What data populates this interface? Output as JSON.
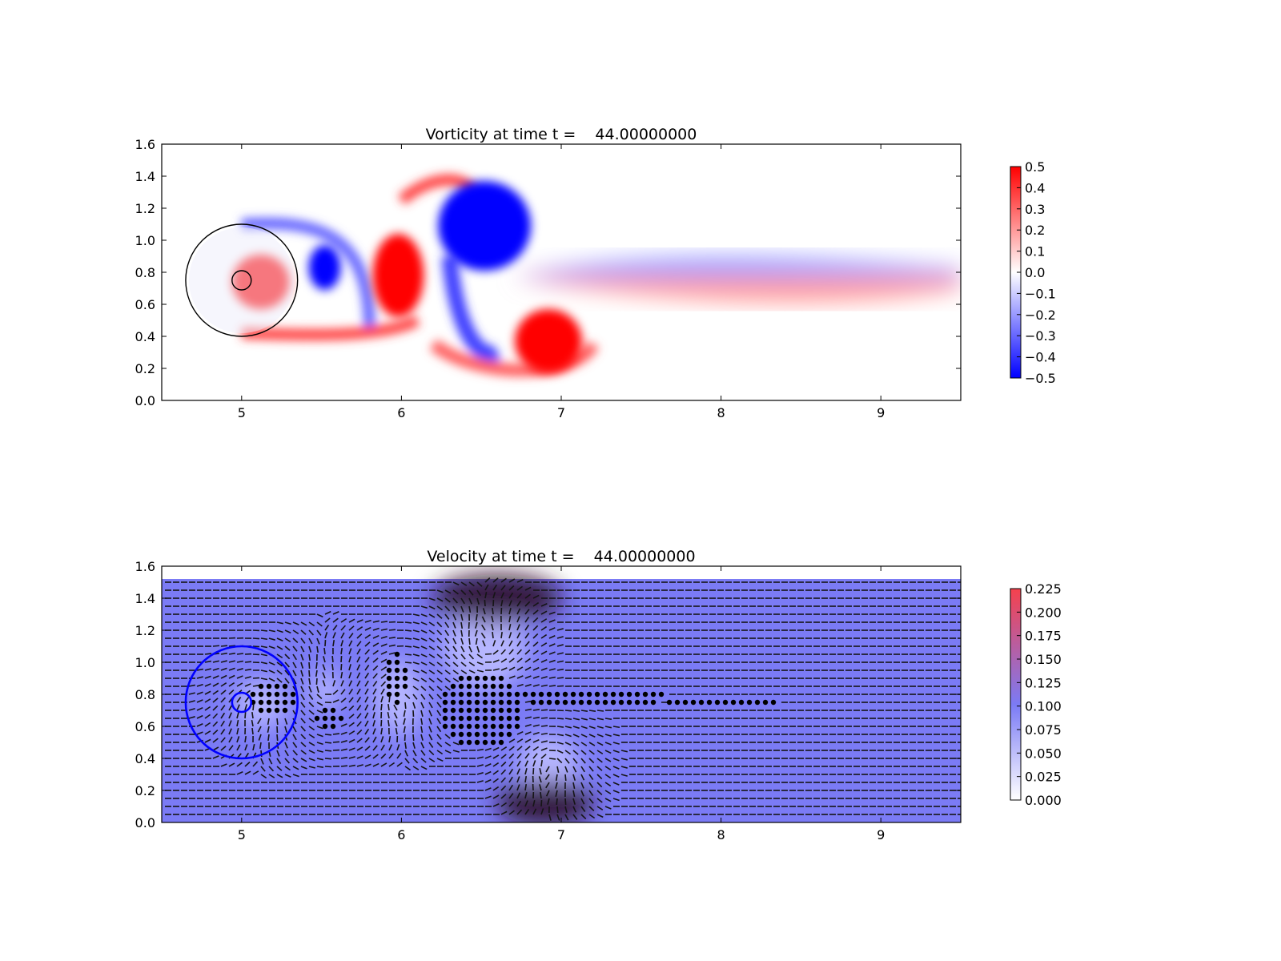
{
  "chart_data": [
    {
      "type": "heatmap",
      "title": "Vorticity at time t =    44.00000000",
      "xlabel": "",
      "ylabel": "",
      "xlim": [
        4.5,
        9.5
      ],
      "ylim": [
        0.0,
        1.6
      ],
      "x_ticks": [
        "5",
        "6",
        "7",
        "8",
        "9"
      ],
      "x_tick_values": [
        5,
        6,
        7,
        8,
        9
      ],
      "y_ticks": [
        "0.0",
        "0.2",
        "0.4",
        "0.6",
        "0.8",
        "1.0",
        "1.2",
        "1.4",
        "1.6"
      ],
      "y_tick_values": [
        0.0,
        0.2,
        0.4,
        0.6,
        0.8,
        1.0,
        1.2,
        1.4,
        1.6
      ],
      "colormap": [
        "#0000ff",
        "#ffffff",
        "#ff0000"
      ],
      "colorbar": {
        "range": [
          -0.5,
          0.5
        ],
        "ticks": [
          "0.5",
          "0.4",
          "0.3",
          "0.2",
          "0.1",
          "0.0",
          "−0.1",
          "−0.2",
          "−0.3",
          "−0.4",
          "−0.5"
        ],
        "tick_values": [
          0.5,
          0.4,
          0.3,
          0.2,
          0.1,
          0.0,
          -0.1,
          -0.2,
          -0.3,
          -0.4,
          -0.5
        ]
      },
      "circles": [
        {
          "cx": 5.0,
          "cy": 0.75,
          "r": 0.35,
          "color": "#000000"
        },
        {
          "cx": 5.0,
          "cy": 0.75,
          "r": 0.06,
          "color": "#000000"
        }
      ],
      "vortices": [
        {
          "x": 5.12,
          "y": 0.74,
          "rx": 0.18,
          "ry": 0.17,
          "value": 0.5
        },
        {
          "x": 5.52,
          "y": 0.83,
          "rx": 0.1,
          "ry": 0.14,
          "value": -0.5
        },
        {
          "x": 5.98,
          "y": 0.78,
          "rx": 0.16,
          "ry": 0.26,
          "value": 0.5
        },
        {
          "x": 6.52,
          "y": 1.09,
          "rx": 0.29,
          "ry": 0.28,
          "value": -0.5
        },
        {
          "x": 6.92,
          "y": 0.37,
          "rx": 0.21,
          "ry": 0.2,
          "value": 0.5
        }
      ],
      "wake": {
        "upper_value": -0.25,
        "lower_value": 0.25,
        "x_start": 6.7,
        "x_end": 9.5,
        "y_center": 0.77
      }
    },
    {
      "type": "heatmap",
      "title": "Velocity at time t =    44.00000000",
      "xlabel": "",
      "ylabel": "",
      "xlim": [
        4.5,
        9.5
      ],
      "ylim": [
        0.0,
        1.6
      ],
      "x_ticks": [
        "5",
        "6",
        "7",
        "8",
        "9"
      ],
      "x_tick_values": [
        5,
        6,
        7,
        8,
        9
      ],
      "y_ticks": [
        "0.0",
        "0.2",
        "0.4",
        "0.6",
        "0.8",
        "1.0",
        "1.2",
        "1.4",
        "1.6"
      ],
      "y_tick_values": [
        0.0,
        0.2,
        0.4,
        0.6,
        0.8,
        1.0,
        1.2,
        1.4,
        1.6
      ],
      "field_top": 1.52,
      "colormap": [
        "#ffffff",
        "#7b7bf5",
        "#f5414d"
      ],
      "colorbar": {
        "range": [
          0.0,
          0.225
        ],
        "ticks": [
          "0.225",
          "0.200",
          "0.175",
          "0.150",
          "0.125",
          "0.100",
          "0.075",
          "0.050",
          "0.025",
          "0.000"
        ],
        "tick_values": [
          0.225,
          0.2,
          0.175,
          0.15,
          0.125,
          0.1,
          0.075,
          0.05,
          0.025,
          0.0
        ]
      },
      "overlay": "quiver",
      "circles": [
        {
          "cx": 5.0,
          "cy": 0.75,
          "r": 0.35,
          "color": "#0000ff"
        },
        {
          "cx": 5.0,
          "cy": 0.75,
          "r": 0.06,
          "color": "#0000ff"
        }
      ],
      "vortices": [
        {
          "x": 5.12,
          "y": 0.74,
          "rx": 0.18,
          "ry": 0.17,
          "value": 1
        },
        {
          "x": 5.52,
          "y": 0.83,
          "rx": 0.1,
          "ry": 0.14,
          "value": -1
        },
        {
          "x": 5.98,
          "y": 0.78,
          "rx": 0.16,
          "ry": 0.26,
          "value": 1
        },
        {
          "x": 6.52,
          "y": 1.09,
          "rx": 0.29,
          "ry": 0.28,
          "value": -1
        },
        {
          "x": 6.92,
          "y": 0.37,
          "rx": 0.21,
          "ry": 0.2,
          "value": 1
        }
      ],
      "stagnation_regions": [
        {
          "x": 5.2,
          "y": 0.77,
          "rx": 0.14,
          "ry": 0.1
        },
        {
          "x": 5.55,
          "y": 0.65,
          "rx": 0.1,
          "ry": 0.07
        },
        {
          "x": 5.97,
          "y": 0.9,
          "rx": 0.06,
          "ry": 0.2
        },
        {
          "x": 6.5,
          "y": 0.7,
          "rx": 0.26,
          "ry": 0.24
        },
        {
          "x": 7.2,
          "y": 0.78,
          "rx": 0.45,
          "ry": 0.07
        },
        {
          "x": 8.0,
          "y": 0.75,
          "rx": 0.35,
          "ry": 0.03
        }
      ]
    }
  ]
}
